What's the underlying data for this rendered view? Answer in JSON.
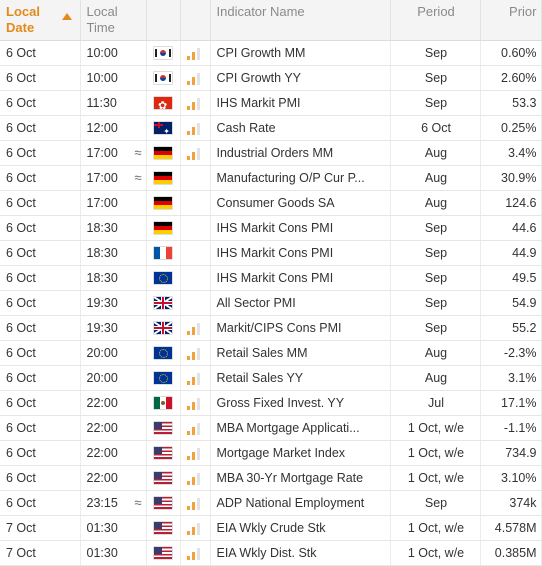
{
  "header": {
    "local_date": "Local\nDate",
    "local_date_line1": "Local",
    "local_date_line2": "Date",
    "local_time_line1": "Local",
    "local_time_line2": "Time",
    "indicator_name": "Indicator Name",
    "period": "Period",
    "prior": "Prior",
    "sort_column": "local_date",
    "sort_direction": "ascending"
  },
  "colors": {
    "accent": "#e38a1a",
    "importance_bar": "#f0a33a",
    "importance_bar_inactive": "#e2e2e2",
    "header_bg": "#f4f4f4"
  },
  "rows": [
    {
      "date": "6 Oct",
      "time": "10:00",
      "wave": "",
      "flag": "flag-kr",
      "importance": 2,
      "name": "CPI Growth MM",
      "period": "Sep",
      "prior": "0.60%"
    },
    {
      "date": "6 Oct",
      "time": "10:00",
      "wave": "",
      "flag": "flag-kr",
      "importance": 2,
      "name": "CPI Growth YY",
      "period": "Sep",
      "prior": "2.60%"
    },
    {
      "date": "6 Oct",
      "time": "11:30",
      "wave": "",
      "flag": "flag-hk",
      "importance": 2,
      "name": "IHS Markit PMI",
      "period": "Sep",
      "prior": "53.3"
    },
    {
      "date": "6 Oct",
      "time": "12:00",
      "wave": "",
      "flag": "flag-au",
      "importance": 2,
      "name": "Cash Rate",
      "period": "6 Oct",
      "prior": "0.25%"
    },
    {
      "date": "6 Oct",
      "time": "17:00",
      "wave": "≈",
      "flag": "flag-de",
      "importance": 2,
      "name": "Industrial Orders MM",
      "period": "Aug",
      "prior": "3.4%"
    },
    {
      "date": "6 Oct",
      "time": "17:00",
      "wave": "≈",
      "flag": "flag-de",
      "importance": 0,
      "name": "Manufacturing O/P Cur P...",
      "period": "Aug",
      "prior": "30.9%"
    },
    {
      "date": "6 Oct",
      "time": "17:00",
      "wave": "",
      "flag": "flag-de",
      "importance": 0,
      "name": "Consumer Goods SA",
      "period": "Aug",
      "prior": "124.6"
    },
    {
      "date": "6 Oct",
      "time": "18:30",
      "wave": "",
      "flag": "flag-de",
      "importance": 0,
      "name": "IHS Markit Cons PMI",
      "period": "Sep",
      "prior": "44.6"
    },
    {
      "date": "6 Oct",
      "time": "18:30",
      "wave": "",
      "flag": "flag-fr",
      "importance": 0,
      "name": "IHS Markit Cons PMI",
      "period": "Sep",
      "prior": "44.9"
    },
    {
      "date": "6 Oct",
      "time": "18:30",
      "wave": "",
      "flag": "flag-eu",
      "importance": 0,
      "name": "IHS Markit Cons PMI",
      "period": "Sep",
      "prior": "49.5"
    },
    {
      "date": "6 Oct",
      "time": "19:30",
      "wave": "",
      "flag": "flag-gb",
      "importance": 0,
      "name": "All Sector PMI",
      "period": "Sep",
      "prior": "54.9"
    },
    {
      "date": "6 Oct",
      "time": "19:30",
      "wave": "",
      "flag": "flag-gb",
      "importance": 2,
      "name": "Markit/CIPS Cons PMI",
      "period": "Sep",
      "prior": "55.2"
    },
    {
      "date": "6 Oct",
      "time": "20:00",
      "wave": "",
      "flag": "flag-eu",
      "importance": 2,
      "name": "Retail Sales MM",
      "period": "Aug",
      "prior": "-2.3%"
    },
    {
      "date": "6 Oct",
      "time": "20:00",
      "wave": "",
      "flag": "flag-eu",
      "importance": 2,
      "name": "Retail Sales YY",
      "period": "Aug",
      "prior": "3.1%"
    },
    {
      "date": "6 Oct",
      "time": "22:00",
      "wave": "",
      "flag": "flag-mx",
      "importance": 2,
      "name": "Gross Fixed Invest. YY",
      "period": "Jul",
      "prior": "17.1%"
    },
    {
      "date": "6 Oct",
      "time": "22:00",
      "wave": "",
      "flag": "flag-us",
      "importance": 2,
      "name": "MBA Mortgage Applicati...",
      "period": "1 Oct, w/e",
      "prior": "-1.1%"
    },
    {
      "date": "6 Oct",
      "time": "22:00",
      "wave": "",
      "flag": "flag-us",
      "importance": 2,
      "name": "Mortgage Market Index",
      "period": "1 Oct, w/e",
      "prior": "734.9"
    },
    {
      "date": "6 Oct",
      "time": "22:00",
      "wave": "",
      "flag": "flag-us",
      "importance": 2,
      "name": "MBA 30-Yr Mortgage Rate",
      "period": "1 Oct, w/e",
      "prior": "3.10%"
    },
    {
      "date": "6 Oct",
      "time": "23:15",
      "wave": "≈",
      "flag": "flag-us",
      "importance": 2,
      "name": "ADP National Employment",
      "period": "Sep",
      "prior": "374k"
    },
    {
      "date": "7 Oct",
      "time": "01:30",
      "wave": "",
      "flag": "flag-us",
      "importance": 2,
      "name": "EIA Wkly Crude Stk",
      "period": "1 Oct, w/e",
      "prior": "4.578M"
    },
    {
      "date": "7 Oct",
      "time": "01:30",
      "wave": "",
      "flag": "flag-us",
      "importance": 2,
      "name": "EIA Wkly Dist. Stk",
      "period": "1 Oct, w/e",
      "prior": "0.385M"
    }
  ]
}
